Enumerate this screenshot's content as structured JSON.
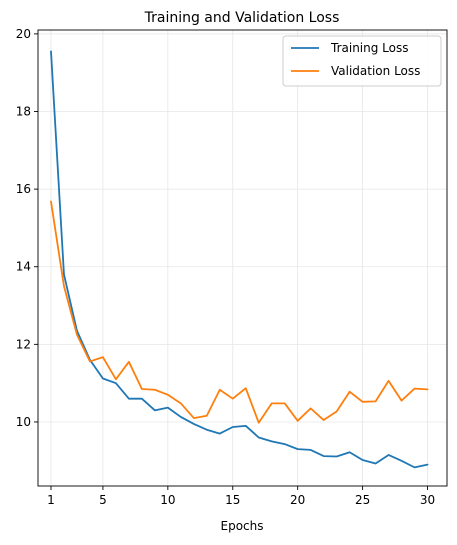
{
  "chart_data": {
    "type": "line",
    "title": "Training and Validation Loss",
    "xlabel": "Epochs",
    "ylabel": "",
    "xlim": [
      0,
      31.5
    ],
    "ylim": [
      8.35,
      20.1
    ],
    "xticks": [
      1,
      5,
      10,
      15,
      20,
      25,
      30
    ],
    "yticks": [
      10,
      12,
      14,
      16,
      18,
      20
    ],
    "grid": true,
    "legend_position": "top-right",
    "x": [
      1,
      2,
      3,
      4,
      5,
      6,
      7,
      8,
      9,
      10,
      11,
      12,
      13,
      14,
      15,
      16,
      17,
      18,
      19,
      20,
      21,
      22,
      23,
      24,
      25,
      26,
      27,
      28,
      29,
      30
    ],
    "series": [
      {
        "name": "Training Loss",
        "color": "#1f77b4",
        "values": [
          19.55,
          13.8,
          12.35,
          11.6,
          11.12,
          11.0,
          10.6,
          10.6,
          10.3,
          10.37,
          10.13,
          9.95,
          9.8,
          9.7,
          9.87,
          9.9,
          9.6,
          9.5,
          9.43,
          9.3,
          9.28,
          9.12,
          9.11,
          9.22,
          9.02,
          8.93,
          9.15,
          9.0,
          8.83,
          8.9
        ]
      },
      {
        "name": "Validation Loss",
        "color": "#ff7f0e",
        "values": [
          15.68,
          13.5,
          12.25,
          11.56,
          11.67,
          11.1,
          11.55,
          10.85,
          10.83,
          10.7,
          10.48,
          10.1,
          10.16,
          10.83,
          10.6,
          10.87,
          9.98,
          10.48,
          10.48,
          10.03,
          10.35,
          10.05,
          10.27,
          10.78,
          10.52,
          10.53,
          11.06,
          10.55,
          10.86,
          10.84
        ]
      }
    ]
  }
}
